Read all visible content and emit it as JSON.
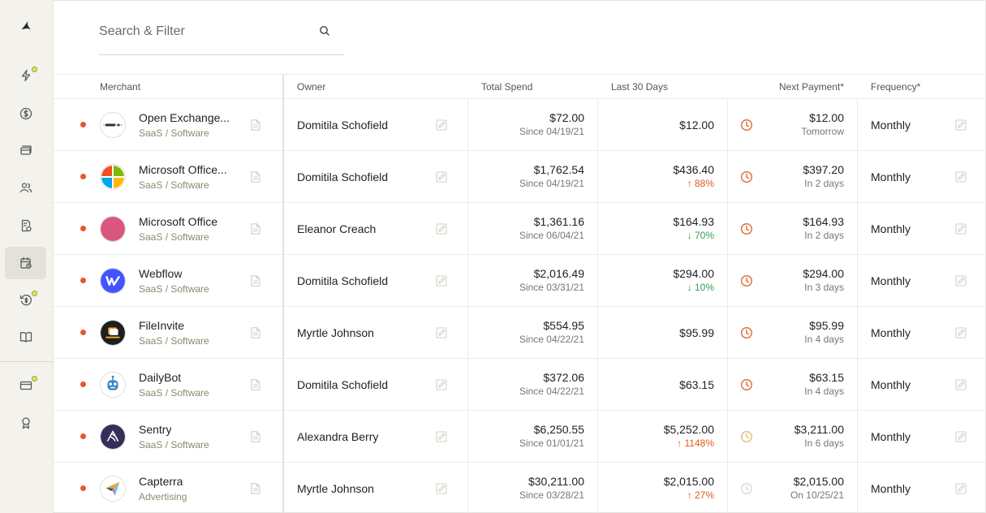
{
  "sidebar": {
    "items": [
      {
        "name": "logo-icon",
        "active": false,
        "badge": false
      },
      {
        "name": "lightning-icon",
        "active": false,
        "badge": true
      },
      {
        "name": "dollar-icon",
        "active": false,
        "badge": false
      },
      {
        "name": "cards-icon",
        "active": false,
        "badge": false
      },
      {
        "name": "users-icon",
        "active": false,
        "badge": false
      },
      {
        "name": "receipt-icon",
        "active": false,
        "badge": false
      },
      {
        "name": "calendar-icon",
        "active": true,
        "badge": false
      },
      {
        "name": "refund-icon",
        "active": false,
        "badge": true
      },
      {
        "name": "book-icon",
        "active": false,
        "badge": false
      },
      {
        "name": "credit-card-icon",
        "active": false,
        "badge": true
      },
      {
        "name": "award-icon",
        "active": false,
        "badge": false
      }
    ]
  },
  "search": {
    "placeholder": "Search & Filter"
  },
  "table": {
    "headers": {
      "merchant": "Merchant",
      "owner": "Owner",
      "total_spend": "Total Spend",
      "last_30_days": "Last 30 Days",
      "next_payment": "Next Payment*",
      "frequency": "Frequency*"
    },
    "rows": [
      {
        "merchant": "Open Exchange...",
        "category": "SaaS / Software",
        "logo": "open-exchange",
        "owner": "Domitila Schofield",
        "total": "$72.00",
        "since": "Since 04/19/21",
        "last30": "$12.00",
        "change": "",
        "change_dir": "",
        "next_amount": "$12.00",
        "next_when": "Tomorrow",
        "clock_color": "#e0733a",
        "frequency": "Monthly"
      },
      {
        "merchant": "Microsoft Office...",
        "category": "SaaS / Software",
        "logo": "microsoft",
        "owner": "Domitila Schofield",
        "total": "$1,762.54",
        "since": "Since 04/19/21",
        "last30": "$436.40",
        "change": "↑ 88%",
        "change_dir": "up",
        "next_amount": "$397.20",
        "next_when": "In 2 days",
        "clock_color": "#e0733a",
        "frequency": "Monthly"
      },
      {
        "merchant": "Microsoft Office",
        "category": "SaaS / Software",
        "logo": "pink-circle",
        "owner": "Eleanor Creach",
        "total": "$1,361.16",
        "since": "Since 06/04/21",
        "last30": "$164.93",
        "change": "↓ 70%",
        "change_dir": "down",
        "next_amount": "$164.93",
        "next_when": "In 2 days",
        "clock_color": "#e0733a",
        "frequency": "Monthly"
      },
      {
        "merchant": "Webflow",
        "category": "SaaS / Software",
        "logo": "webflow",
        "owner": "Domitila Schofield",
        "total": "$2,016.49",
        "since": "Since 03/31/21",
        "last30": "$294.00",
        "change": "↓ 10%",
        "change_dir": "down",
        "next_amount": "$294.00",
        "next_when": "In 3 days",
        "clock_color": "#e0733a",
        "frequency": "Monthly"
      },
      {
        "merchant": "FileInvite",
        "category": "SaaS / Software",
        "logo": "fileinvite",
        "owner": "Myrtle Johnson",
        "total": "$554.95",
        "since": "Since 04/22/21",
        "last30": "$95.99",
        "change": "",
        "change_dir": "",
        "next_amount": "$95.99",
        "next_when": "In 4 days",
        "clock_color": "#e0733a",
        "frequency": "Monthly"
      },
      {
        "merchant": "DailyBot",
        "category": "SaaS / Software",
        "logo": "dailybot",
        "owner": "Domitila Schofield",
        "total": "$372.06",
        "since": "Since 04/22/21",
        "last30": "$63.15",
        "change": "",
        "change_dir": "",
        "next_amount": "$63.15",
        "next_when": "In 4 days",
        "clock_color": "#e0733a",
        "frequency": "Monthly"
      },
      {
        "merchant": "Sentry",
        "category": "SaaS / Software",
        "logo": "sentry",
        "owner": "Alexandra Berry",
        "total": "$6,250.55",
        "since": "Since 01/01/21",
        "last30": "$5,252.00",
        "change": "↑ 1148%",
        "change_dir": "up",
        "next_amount": "$3,211.00",
        "next_when": "In 6 days",
        "clock_color": "#e2c27a",
        "frequency": "Monthly"
      },
      {
        "merchant": "Capterra",
        "category": "Advertising",
        "logo": "capterra",
        "owner": "Myrtle Johnson",
        "total": "$30,211.00",
        "since": "Since 03/28/21",
        "last30": "$2,015.00",
        "change": "↑ 27%",
        "change_dir": "up",
        "next_amount": "$2,015.00",
        "next_when": "On 10/25/21",
        "clock_color": "#dcdcd4",
        "frequency": "Monthly"
      }
    ]
  }
}
